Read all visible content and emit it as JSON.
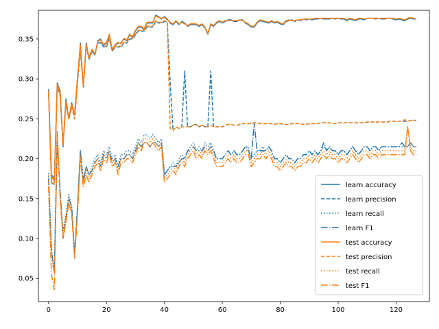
{
  "chart_data": {
    "type": "line",
    "title": "",
    "xlabel": "",
    "ylabel": "",
    "xlim": [
      -3.5,
      131.5
    ],
    "ylim": [
      0.021,
      0.386
    ],
    "xticks": [
      0,
      20,
      40,
      60,
      80,
      100,
      120
    ],
    "yticks": [
      0.05,
      0.1,
      0.15,
      0.2,
      0.25,
      0.3,
      0.35
    ],
    "ytick_labels": [
      "0.05",
      "0.10",
      "0.15",
      "0.20",
      "0.25",
      "0.30",
      "0.35"
    ],
    "grid": false,
    "legend_position": "lower-right",
    "x": [
      0,
      1,
      2,
      3,
      4,
      5,
      6,
      7,
      8,
      9,
      10,
      11,
      12,
      13,
      14,
      15,
      16,
      17,
      18,
      19,
      20,
      21,
      22,
      23,
      24,
      25,
      26,
      27,
      28,
      29,
      30,
      31,
      32,
      33,
      34,
      35,
      36,
      37,
      38,
      39,
      40,
      41,
      42,
      43,
      44,
      45,
      46,
      47,
      48,
      49,
      50,
      51,
      52,
      53,
      54,
      55,
      56,
      57,
      58,
      59,
      60,
      61,
      62,
      63,
      64,
      65,
      66,
      67,
      68,
      69,
      70,
      71,
      72,
      73,
      74,
      75,
      76,
      77,
      78,
      79,
      80,
      81,
      82,
      83,
      84,
      85,
      86,
      87,
      88,
      89,
      90,
      91,
      92,
      93,
      94,
      95,
      96,
      97,
      98,
      99,
      100,
      101,
      102,
      103,
      104,
      105,
      106,
      107,
      108,
      109,
      110,
      111,
      112,
      113,
      114,
      115,
      116,
      117,
      118,
      119,
      120,
      121,
      122,
      123,
      124,
      125,
      126,
      127
    ],
    "series": [
      {
        "name": "learn accuracy",
        "color": "#1f77b4",
        "dash": "solid",
        "values": [
          0.287,
          0.18,
          0.175,
          0.295,
          0.285,
          0.215,
          0.275,
          0.25,
          0.27,
          0.255,
          0.3,
          0.345,
          0.29,
          0.345,
          0.325,
          0.335,
          0.33,
          0.348,
          0.35,
          0.342,
          0.345,
          0.355,
          0.335,
          0.342,
          0.345,
          0.345,
          0.35,
          0.348,
          0.355,
          0.352,
          0.36,
          0.365,
          0.365,
          0.362,
          0.37,
          0.37,
          0.37,
          0.38,
          0.378,
          0.375,
          0.378,
          0.375,
          0.37,
          0.368,
          0.372,
          0.368,
          0.372,
          0.37,
          0.366,
          0.368,
          0.368,
          0.368,
          0.366,
          0.368,
          0.364,
          0.356,
          0.368,
          0.366,
          0.37,
          0.372,
          0.37,
          0.372,
          0.374,
          0.374,
          0.372,
          0.372,
          0.374,
          0.374,
          0.37,
          0.368,
          0.365,
          0.365,
          0.37,
          0.373,
          0.372,
          0.371,
          0.37,
          0.372,
          0.37,
          0.371,
          0.369,
          0.368,
          0.372,
          0.373,
          0.374,
          0.372,
          0.374,
          0.373,
          0.375,
          0.374,
          0.375,
          0.374,
          0.375,
          0.375,
          0.376,
          0.375,
          0.375,
          0.375,
          0.376,
          0.375,
          0.376,
          0.375,
          0.375,
          0.373,
          0.375,
          0.374,
          0.373,
          0.375,
          0.375,
          0.374,
          0.376,
          0.376,
          0.376,
          0.375,
          0.376,
          0.375,
          0.375,
          0.376,
          0.376,
          0.375,
          0.374,
          0.375,
          0.374,
          0.373,
          0.375,
          0.376,
          0.375,
          0.375
        ]
      },
      {
        "name": "learn precision",
        "color": "#1f77b4",
        "dash": "dashed",
        "values": [
          0.285,
          0.17,
          0.168,
          0.29,
          0.28,
          0.215,
          0.27,
          0.25,
          0.265,
          0.25,
          0.295,
          0.335,
          0.29,
          0.34,
          0.325,
          0.335,
          0.33,
          0.345,
          0.345,
          0.34,
          0.34,
          0.35,
          0.335,
          0.34,
          0.34,
          0.34,
          0.345,
          0.345,
          0.35,
          0.35,
          0.355,
          0.36,
          0.36,
          0.36,
          0.365,
          0.365,
          0.365,
          0.372,
          0.37,
          0.37,
          0.372,
          0.37,
          0.295,
          0.235,
          0.24,
          0.238,
          0.24,
          0.31,
          0.24,
          0.24,
          0.242,
          0.243,
          0.24,
          0.242,
          0.24,
          0.24,
          0.31,
          0.24,
          0.24,
          0.24,
          0.24,
          0.242,
          0.243,
          0.243,
          0.242,
          0.242,
          0.243,
          0.244,
          0.244,
          0.244,
          0.244,
          0.245,
          0.245,
          0.244,
          0.244,
          0.244,
          0.244,
          0.244,
          0.243,
          0.244,
          0.244,
          0.243,
          0.243,
          0.243,
          0.244,
          0.244,
          0.244,
          0.244,
          0.243,
          0.243,
          0.244,
          0.244,
          0.244,
          0.244,
          0.245,
          0.245,
          0.245,
          0.245,
          0.244,
          0.244,
          0.245,
          0.245,
          0.245,
          0.245,
          0.245,
          0.245,
          0.245,
          0.245,
          0.245,
          0.245,
          0.246,
          0.246,
          0.246,
          0.246,
          0.246,
          0.246,
          0.246,
          0.246,
          0.247,
          0.247,
          0.247,
          0.247,
          0.247,
          0.247,
          0.247,
          0.248,
          0.248,
          0.248
        ]
      },
      {
        "name": "learn recall",
        "color": "#1f77b4",
        "dash": "dotted",
        "values": [
          0.182,
          0.085,
          0.06,
          0.235,
          0.16,
          0.11,
          0.13,
          0.155,
          0.14,
          0.08,
          0.14,
          0.21,
          0.175,
          0.19,
          0.18,
          0.19,
          0.2,
          0.205,
          0.195,
          0.21,
          0.205,
          0.215,
          0.2,
          0.205,
          0.19,
          0.205,
          0.205,
          0.21,
          0.21,
          0.205,
          0.215,
          0.225,
          0.22,
          0.23,
          0.23,
          0.225,
          0.23,
          0.225,
          0.22,
          0.225,
          0.18,
          0.185,
          0.19,
          0.195,
          0.19,
          0.2,
          0.205,
          0.2,
          0.21,
          0.215,
          0.22,
          0.21,
          0.215,
          0.21,
          0.22,
          0.215,
          0.22,
          0.21,
          0.2,
          0.2,
          0.2,
          0.205,
          0.21,
          0.205,
          0.21,
          0.205,
          0.205,
          0.21,
          0.215,
          0.215,
          0.2,
          0.205,
          0.21,
          0.21,
          0.215,
          0.21,
          0.215,
          0.21,
          0.2,
          0.2,
          0.195,
          0.2,
          0.205,
          0.2,
          0.2,
          0.195,
          0.2,
          0.2,
          0.205,
          0.205,
          0.21,
          0.205,
          0.21,
          0.205,
          0.21,
          0.215,
          0.21,
          0.215,
          0.21,
          0.21,
          0.205,
          0.21,
          0.21,
          0.205,
          0.21,
          0.215,
          0.21,
          0.205,
          0.21,
          0.215,
          0.215,
          0.21,
          0.215,
          0.215,
          0.21,
          0.215,
          0.215,
          0.215,
          0.215,
          0.215,
          0.215,
          0.215,
          0.215,
          0.215,
          0.215,
          0.22,
          0.215,
          0.215
        ]
      },
      {
        "name": "learn F1",
        "color": "#1f77b4",
        "dash": "dashdot",
        "values": [
          0.175,
          0.085,
          0.058,
          0.22,
          0.16,
          0.1,
          0.125,
          0.15,
          0.14,
          0.08,
          0.14,
          0.21,
          0.17,
          0.19,
          0.18,
          0.185,
          0.195,
          0.2,
          0.19,
          0.205,
          0.2,
          0.21,
          0.195,
          0.2,
          0.19,
          0.2,
          0.2,
          0.205,
          0.205,
          0.2,
          0.21,
          0.22,
          0.215,
          0.22,
          0.22,
          0.215,
          0.22,
          0.22,
          0.215,
          0.22,
          0.18,
          0.185,
          0.19,
          0.19,
          0.19,
          0.195,
          0.2,
          0.2,
          0.21,
          0.21,
          0.215,
          0.21,
          0.21,
          0.21,
          0.215,
          0.21,
          0.215,
          0.21,
          0.2,
          0.2,
          0.2,
          0.205,
          0.21,
          0.205,
          0.21,
          0.205,
          0.205,
          0.21,
          0.215,
          0.21,
          0.2,
          0.245,
          0.21,
          0.21,
          0.21,
          0.21,
          0.215,
          0.21,
          0.2,
          0.2,
          0.195,
          0.2,
          0.205,
          0.2,
          0.2,
          0.195,
          0.2,
          0.2,
          0.205,
          0.205,
          0.21,
          0.205,
          0.21,
          0.205,
          0.21,
          0.22,
          0.21,
          0.215,
          0.21,
          0.21,
          0.205,
          0.21,
          0.21,
          0.205,
          0.21,
          0.215,
          0.21,
          0.205,
          0.21,
          0.215,
          0.215,
          0.21,
          0.215,
          0.215,
          0.21,
          0.215,
          0.215,
          0.215,
          0.215,
          0.215,
          0.215,
          0.215,
          0.22,
          0.215,
          0.215,
          0.22,
          0.215,
          0.215
        ]
      },
      {
        "name": "test accuracy",
        "color": "#ff7f0e",
        "dash": "solid",
        "values": [
          0.285,
          0.178,
          0.172,
          0.293,
          0.283,
          0.217,
          0.272,
          0.252,
          0.268,
          0.257,
          0.302,
          0.343,
          0.292,
          0.343,
          0.327,
          0.337,
          0.331,
          0.347,
          0.349,
          0.343,
          0.346,
          0.356,
          0.337,
          0.343,
          0.346,
          0.344,
          0.351,
          0.349,
          0.356,
          0.353,
          0.361,
          0.366,
          0.366,
          0.363,
          0.371,
          0.371,
          0.371,
          0.379,
          0.377,
          0.376,
          0.377,
          0.374,
          0.371,
          0.369,
          0.373,
          0.369,
          0.371,
          0.369,
          0.367,
          0.369,
          0.369,
          0.369,
          0.367,
          0.369,
          0.365,
          0.357,
          0.369,
          0.367,
          0.371,
          0.373,
          0.371,
          0.373,
          0.373,
          0.373,
          0.373,
          0.373,
          0.374,
          0.373,
          0.371,
          0.369,
          0.366,
          0.366,
          0.371,
          0.374,
          0.373,
          0.372,
          0.371,
          0.373,
          0.371,
          0.372,
          0.37,
          0.369,
          0.373,
          0.374,
          0.373,
          0.373,
          0.374,
          0.374,
          0.375,
          0.375,
          0.375,
          0.375,
          0.376,
          0.376,
          0.376,
          0.376,
          0.376,
          0.376,
          0.376,
          0.376,
          0.376,
          0.376,
          0.376,
          0.374,
          0.376,
          0.375,
          0.374,
          0.376,
          0.376,
          0.375,
          0.376,
          0.376,
          0.376,
          0.376,
          0.376,
          0.376,
          0.376,
          0.376,
          0.376,
          0.376,
          0.375,
          0.376,
          0.375,
          0.374,
          0.376,
          0.377,
          0.376,
          0.375
        ]
      },
      {
        "name": "test precision",
        "color": "#ff7f0e",
        "dash": "dashed",
        "values": [
          0.283,
          0.168,
          0.17,
          0.288,
          0.279,
          0.218,
          0.268,
          0.25,
          0.266,
          0.25,
          0.296,
          0.336,
          0.29,
          0.341,
          0.325,
          0.336,
          0.331,
          0.346,
          0.346,
          0.341,
          0.341,
          0.351,
          0.336,
          0.341,
          0.341,
          0.341,
          0.346,
          0.346,
          0.351,
          0.351,
          0.356,
          0.361,
          0.361,
          0.361,
          0.366,
          0.366,
          0.366,
          0.373,
          0.371,
          0.371,
          0.373,
          0.371,
          0.238,
          0.235,
          0.24,
          0.238,
          0.24,
          0.24,
          0.24,
          0.24,
          0.242,
          0.243,
          0.24,
          0.242,
          0.24,
          0.24,
          0.242,
          0.24,
          0.24,
          0.24,
          0.24,
          0.242,
          0.243,
          0.243,
          0.242,
          0.242,
          0.243,
          0.244,
          0.244,
          0.244,
          0.244,
          0.245,
          0.245,
          0.244,
          0.244,
          0.244,
          0.244,
          0.244,
          0.243,
          0.244,
          0.244,
          0.243,
          0.243,
          0.243,
          0.244,
          0.244,
          0.244,
          0.244,
          0.243,
          0.243,
          0.244,
          0.244,
          0.244,
          0.244,
          0.245,
          0.245,
          0.245,
          0.245,
          0.244,
          0.244,
          0.245,
          0.245,
          0.245,
          0.245,
          0.245,
          0.245,
          0.245,
          0.245,
          0.245,
          0.245,
          0.246,
          0.246,
          0.246,
          0.246,
          0.246,
          0.246,
          0.246,
          0.246,
          0.247,
          0.247,
          0.247,
          0.247,
          0.247,
          0.249,
          0.247,
          0.248,
          0.248,
          0.248
        ]
      },
      {
        "name": "test recall",
        "color": "#ff7f0e",
        "dash": "dotted",
        "values": [
          0.18,
          0.08,
          0.055,
          0.23,
          0.155,
          0.105,
          0.125,
          0.15,
          0.135,
          0.078,
          0.135,
          0.205,
          0.17,
          0.185,
          0.175,
          0.185,
          0.195,
          0.2,
          0.19,
          0.205,
          0.2,
          0.21,
          0.195,
          0.2,
          0.185,
          0.2,
          0.2,
          0.205,
          0.205,
          0.2,
          0.21,
          0.22,
          0.215,
          0.225,
          0.225,
          0.22,
          0.225,
          0.22,
          0.215,
          0.22,
          0.175,
          0.18,
          0.185,
          0.19,
          0.185,
          0.195,
          0.2,
          0.195,
          0.205,
          0.21,
          0.215,
          0.205,
          0.21,
          0.205,
          0.215,
          0.21,
          0.215,
          0.205,
          0.195,
          0.195,
          0.195,
          0.2,
          0.205,
          0.2,
          0.205,
          0.2,
          0.2,
          0.205,
          0.21,
          0.21,
          0.195,
          0.2,
          0.205,
          0.205,
          0.21,
          0.205,
          0.21,
          0.205,
          0.195,
          0.195,
          0.19,
          0.195,
          0.2,
          0.195,
          0.195,
          0.19,
          0.195,
          0.195,
          0.2,
          0.2,
          0.205,
          0.2,
          0.205,
          0.2,
          0.205,
          0.21,
          0.205,
          0.21,
          0.205,
          0.205,
          0.2,
          0.205,
          0.205,
          0.2,
          0.205,
          0.21,
          0.205,
          0.2,
          0.205,
          0.21,
          0.21,
          0.205,
          0.21,
          0.21,
          0.205,
          0.21,
          0.21,
          0.21,
          0.21,
          0.21,
          0.21,
          0.21,
          0.21,
          0.21,
          0.24,
          0.215,
          0.21,
          0.21
        ]
      },
      {
        "name": "test F1",
        "color": "#ff7f0e",
        "dash": "dashdot",
        "values": [
          0.165,
          0.055,
          0.036,
          0.232,
          0.15,
          0.1,
          0.12,
          0.145,
          0.13,
          0.075,
          0.13,
          0.2,
          0.165,
          0.18,
          0.17,
          0.18,
          0.19,
          0.195,
          0.185,
          0.2,
          0.195,
          0.205,
          0.19,
          0.195,
          0.18,
          0.195,
          0.195,
          0.2,
          0.2,
          0.195,
          0.205,
          0.215,
          0.21,
          0.22,
          0.22,
          0.215,
          0.22,
          0.215,
          0.21,
          0.215,
          0.17,
          0.175,
          0.18,
          0.185,
          0.18,
          0.19,
          0.195,
          0.19,
          0.2,
          0.205,
          0.21,
          0.2,
          0.205,
          0.2,
          0.21,
          0.205,
          0.21,
          0.2,
          0.19,
          0.19,
          0.19,
          0.195,
          0.2,
          0.195,
          0.2,
          0.195,
          0.195,
          0.2,
          0.205,
          0.205,
          0.19,
          0.195,
          0.2,
          0.2,
          0.205,
          0.2,
          0.205,
          0.2,
          0.19,
          0.19,
          0.185,
          0.19,
          0.195,
          0.19,
          0.19,
          0.185,
          0.19,
          0.19,
          0.195,
          0.195,
          0.2,
          0.195,
          0.2,
          0.195,
          0.2,
          0.205,
          0.2,
          0.205,
          0.2,
          0.2,
          0.195,
          0.2,
          0.2,
          0.195,
          0.2,
          0.205,
          0.2,
          0.195,
          0.2,
          0.205,
          0.205,
          0.2,
          0.205,
          0.205,
          0.2,
          0.205,
          0.205,
          0.205,
          0.205,
          0.205,
          0.205,
          0.205,
          0.205,
          0.205,
          0.24,
          0.21,
          0.205,
          0.205
        ]
      }
    ]
  }
}
